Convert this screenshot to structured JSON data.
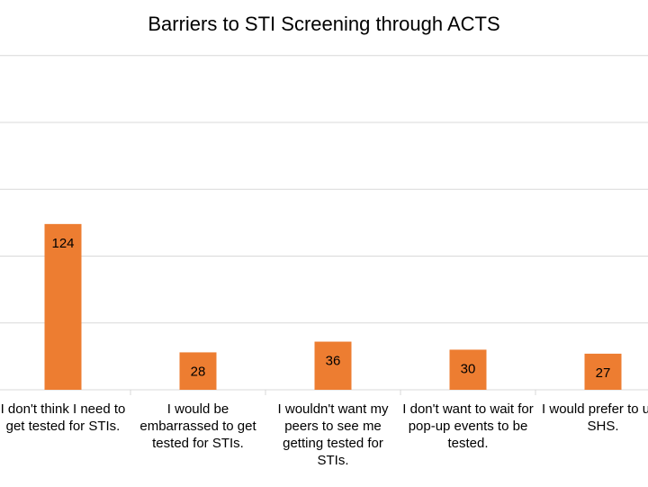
{
  "chart_data": {
    "type": "bar",
    "title": "Barriers to STI Screening through ACTS",
    "categories": [
      "I don't think I need to get tested for STIs.",
      "I would be embarrassed to get tested for STIs.",
      "I wouldn't want my peers to see me getting tested for STIs.",
      "I don't want to wait for pop-up events to be tested.",
      "I would prefer to use SHS."
    ],
    "series": [
      {
        "values": [
          124,
          28,
          36,
          30,
          27
        ]
      }
    ],
    "ylim": [
      0,
      250
    ],
    "ytick_step": 50,
    "grid": true,
    "legend": "none",
    "bar_color": "#ED7D31",
    "gridline_color": "#D9D9D9",
    "data_labels": true
  }
}
